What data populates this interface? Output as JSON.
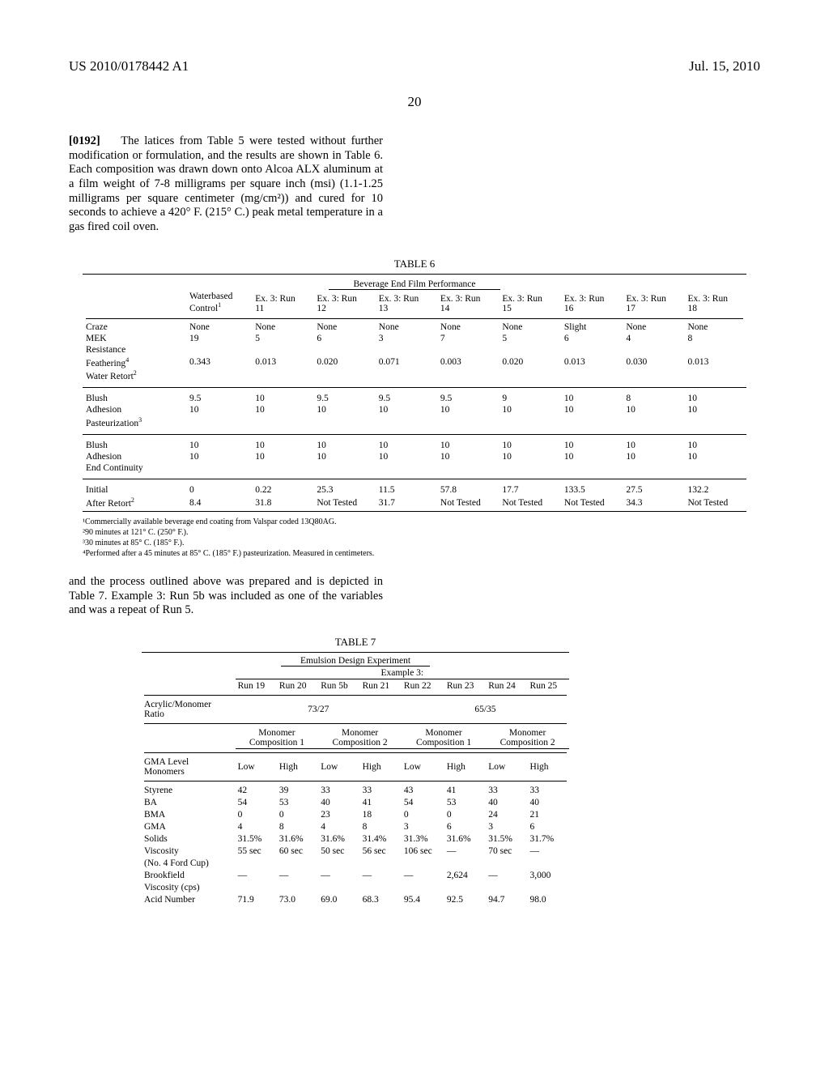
{
  "header": {
    "pubnum": "US 2010/0178442 A1",
    "date": "Jul. 15, 2010",
    "pagenum": "20"
  },
  "para1": {
    "num": "[0192]",
    "text": "The latices from Table 5 were tested without further modification or formulation, and the results are shown in Table 6. Each composition was drawn down onto Alcoa ALX aluminum at a film weight of 7-8 milligrams per square inch (msi) (1.1-1.25 milligrams per square centimeter (mg/cm²)) and cured for 10 seconds to achieve a 420° F. (215° C.) peak metal temperature in a gas fired coil oven."
  },
  "table6": {
    "caption": "TABLE 6",
    "subtitle": "Beverage End Film Performance",
    "cols": [
      "",
      "Waterbased Control¹",
      "Ex. 3: Run 11",
      "Ex. 3: Run 12",
      "Ex. 3: Run 13",
      "Ex. 3: Run 14",
      "Ex. 3: Run 15",
      "Ex. 3: Run 16",
      "Ex. 3: Run 17",
      "Ex. 3: Run 18"
    ],
    "group1": [
      [
        "Craze",
        "None",
        "None",
        "None",
        "None",
        "None",
        "None",
        "Slight",
        "None",
        "None"
      ],
      [
        "MEK",
        "19",
        "5",
        "6",
        "3",
        "7",
        "5",
        "6",
        "4",
        "8"
      ],
      [
        "Resistance",
        "",
        "",
        "",
        "",
        "",
        "",
        "",
        "",
        ""
      ],
      [
        "Feathering⁴",
        "0.343",
        "0.013",
        "0.020",
        "0.071",
        "0.003",
        "0.020",
        "0.013",
        "0.030",
        "0.013"
      ],
      [
        "Water Retort²",
        "",
        "",
        "",
        "",
        "",
        "",
        "",
        "",
        ""
      ]
    ],
    "group2": [
      [
        "Blush",
        "9.5",
        "10",
        "9.5",
        "9.5",
        "9.5",
        "9",
        "10",
        "8",
        "10"
      ],
      [
        "Adhesion",
        "10",
        "10",
        "10",
        "10",
        "10",
        "10",
        "10",
        "10",
        "10"
      ],
      [
        "Pasteurization³",
        "",
        "",
        "",
        "",
        "",
        "",
        "",
        "",
        ""
      ]
    ],
    "group3": [
      [
        "Blush",
        "10",
        "10",
        "10",
        "10",
        "10",
        "10",
        "10",
        "10",
        "10"
      ],
      [
        "Adhesion",
        "10",
        "10",
        "10",
        "10",
        "10",
        "10",
        "10",
        "10",
        "10"
      ],
      [
        "End Continuity",
        "",
        "",
        "",
        "",
        "",
        "",
        "",
        "",
        ""
      ]
    ],
    "group4": [
      [
        "Initial",
        "0",
        "0.22",
        "25.3",
        "11.5",
        "57.8",
        "17.7",
        "133.5",
        "27.5",
        "132.2"
      ],
      [
        "After Retort²",
        "8.4",
        "31.8",
        "Not Tested",
        "31.7",
        "Not Tested",
        "Not Tested",
        "Not Tested",
        "34.3",
        "Not Tested"
      ]
    ],
    "footnotes": [
      "¹Commercially available beverage end coating from Valspar coded 13Q80AG.",
      "²90 minutes at 121° C. (250° F.).",
      "³30 minutes at 85° C. (185° F.).",
      "⁴Performed after a 45 minutes at 85° C. (185° F.) pasteurization. Measured in centimeters."
    ]
  },
  "para2": {
    "text": "and the process outlined above was prepared and is depicted in Table 7. Example 3: Run 5b was included as one of the variables and was a repeat of Run 5."
  },
  "table7": {
    "caption": "TABLE 7",
    "subtitle": "Emulsion Design Experiment",
    "example": "Example 3:",
    "runs": [
      "Run 19",
      "Run 20",
      "Run 5b",
      "Run 21",
      "Run 22",
      "Run 23",
      "Run 24",
      "Run 25"
    ],
    "ratio_label": "Acrylic/Monomer Ratio",
    "ratio_vals": [
      "73/27",
      "65/35"
    ],
    "monomer_groups": [
      "Monomer Composition 1",
      "Monomer Composition 2",
      "Monomer Composition 1",
      "Monomer Composition 2"
    ],
    "gma_label": "GMA Level",
    "monomers_label": "Monomers",
    "gma_vals": [
      "Low",
      "High",
      "Low",
      "High",
      "Low",
      "High",
      "Low",
      "High"
    ],
    "rows": [
      [
        "Styrene",
        "42",
        "39",
        "33",
        "33",
        "43",
        "41",
        "33",
        "33"
      ],
      [
        "BA",
        "54",
        "53",
        "40",
        "41",
        "54",
        "53",
        "40",
        "40"
      ],
      [
        "BMA",
        "0",
        "0",
        "23",
        "18",
        "0",
        "0",
        "24",
        "21"
      ],
      [
        "GMA",
        "4",
        "8",
        "4",
        "8",
        "3",
        "6",
        "3",
        "6"
      ],
      [
        "Solids",
        "31.5%",
        "31.6%",
        "31.6%",
        "31.4%",
        "31.3%",
        "31.6%",
        "31.5%",
        "31.7%"
      ],
      [
        "Viscosity",
        "55 sec",
        "60 sec",
        "50 sec",
        "56 sec",
        "106 sec",
        "—",
        "70 sec",
        "—"
      ],
      [
        "(No. 4 Ford Cup)",
        "",
        "",
        "",
        "",
        "",
        "",
        "",
        ""
      ],
      [
        "Brookfield",
        "—",
        "—",
        "—",
        "—",
        "—",
        "2,624",
        "—",
        "3,000"
      ],
      [
        "Viscosity (cps)",
        "",
        "",
        "",
        "",
        "",
        "",
        "",
        ""
      ],
      [
        "Acid Number",
        "71.9",
        "73.0",
        "69.0",
        "68.3",
        "95.4",
        "92.5",
        "94.7",
        "98.0"
      ]
    ]
  }
}
